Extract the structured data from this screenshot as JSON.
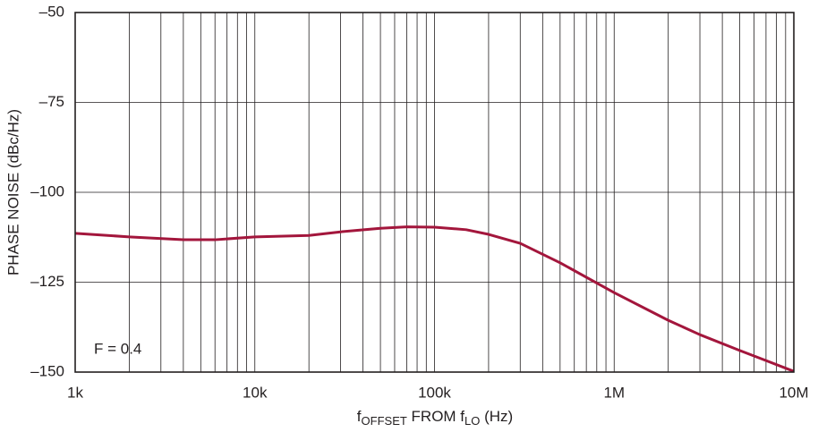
{
  "chart_data": {
    "type": "line",
    "ylabel": "PHASE NOISE (dBc/Hz)",
    "xlabel_parts": [
      "f",
      "OFFSET",
      " FROM f",
      "LO",
      " (Hz)"
    ],
    "annotation": "F = 0.4",
    "xlog": true,
    "grid": true,
    "xlim": [
      1000,
      10000000
    ],
    "ylim": [
      -150,
      -50
    ],
    "xticks": [
      {
        "value": 1000,
        "label": "1k"
      },
      {
        "value": 10000,
        "label": "10k"
      },
      {
        "value": 100000,
        "label": "100k"
      },
      {
        "value": 1000000,
        "label": "1M"
      },
      {
        "value": 10000000,
        "label": "10M"
      }
    ],
    "xminorticks": [
      2000,
      3000,
      4000,
      5000,
      6000,
      7000,
      8000,
      9000,
      20000,
      30000,
      40000,
      50000,
      60000,
      70000,
      80000,
      90000,
      200000,
      300000,
      400000,
      500000,
      600000,
      700000,
      800000,
      900000,
      2000000,
      3000000,
      4000000,
      5000000,
      6000000,
      7000000,
      8000000,
      9000000
    ],
    "yticks": [
      {
        "value": -50,
        "label": "–50"
      },
      {
        "value": -75,
        "label": "–75"
      },
      {
        "value": -100,
        "label": "–100"
      },
      {
        "value": -125,
        "label": "–125"
      },
      {
        "value": -150,
        "label": "–150"
      }
    ],
    "series": [
      {
        "color": "#a3163c",
        "x": [
          1000,
          2000,
          4000,
          6000,
          10000,
          20000,
          30000,
          50000,
          70000,
          100000,
          150000,
          200000,
          300000,
          500000,
          1000000,
          2000000,
          3000000,
          5000000,
          7000000,
          10000000
        ],
        "values": [
          -111.4,
          -112.4,
          -113.2,
          -113.2,
          -112.4,
          -112,
          -111,
          -110,
          -109.6,
          -109.7,
          -110.4,
          -111.7,
          -114.2,
          -119.6,
          -127.9,
          -135.6,
          -139.6,
          -144,
          -146.8,
          -149.8
        ]
      }
    ]
  }
}
